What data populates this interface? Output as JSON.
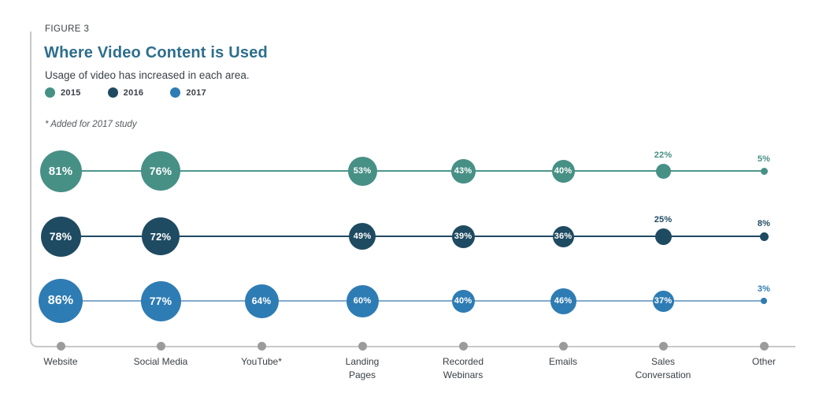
{
  "header": {
    "figure_label": "FIGURE 3",
    "title": "Where Video Content is Used",
    "subtitle": "Usage of video has increased in each area.",
    "footnote": "* Added for 2017 study"
  },
  "legend": [
    {
      "label": "2015",
      "color": "#479085"
    },
    {
      "label": "2016",
      "color": "#1e4b61"
    },
    {
      "label": "2017",
      "color": "#2e7cb4"
    }
  ],
  "colors": {
    "title": "#2d6e8c",
    "axis_line": "#c8c8c8",
    "axis_dot": "#9b9b9b",
    "text": "#3a4046"
  },
  "chart_data": {
    "type": "bubble",
    "title": "Where Video Content is Used",
    "subtitle": "Usage of video has increased in each area.",
    "categories": [
      "Website",
      "Social Media",
      "YouTube*",
      "Landing\nPages",
      "Recorded\nWebinars",
      "Emails",
      "Sales\nConversation",
      "Other"
    ],
    "series": [
      {
        "name": "2015",
        "color": "#479085",
        "line_color": "#4f968b",
        "values": [
          81,
          76,
          null,
          53,
          43,
          40,
          22,
          5
        ]
      },
      {
        "name": "2016",
        "color": "#1e4b61",
        "line_color": "#1e4b61",
        "values": [
          78,
          72,
          null,
          49,
          39,
          36,
          25,
          8
        ]
      },
      {
        "name": "2017",
        "color": "#2e7cb4",
        "line_color": "#83abcb",
        "values": [
          86,
          77,
          64,
          60,
          40,
          46,
          37,
          3
        ]
      }
    ],
    "value_suffix": "%",
    "inside_label_min_value": 36,
    "legend_position": "top",
    "grid": false
  }
}
